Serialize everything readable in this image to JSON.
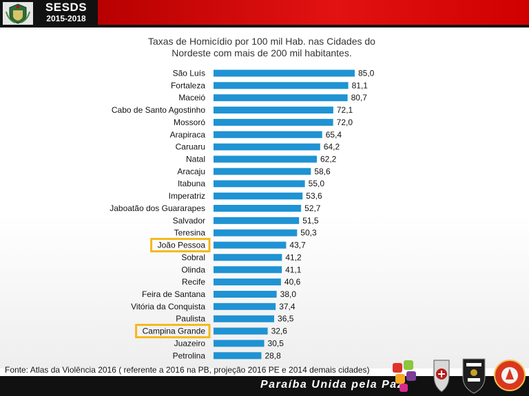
{
  "header": {
    "brand_title": "SESDS",
    "brand_years": "2015-2018",
    "red_color": "#e21212"
  },
  "footer": {
    "source": "Fonte: Atlas da Violência 2016 ( referente a 2016 na PB, projeção 2016 PE e 2014 demais cidades)",
    "slogan": "Paraíba Unida pela Paz"
  },
  "icons": [
    "state-crest-icon",
    "puzzle-logo-icon",
    "policia-militar-badge-icon",
    "policia-civil-badge-icon",
    "bombeiros-badge-icon"
  ],
  "chart_data": {
    "type": "bar",
    "orientation": "horizontal",
    "title_line1": "Taxas de Homicídio por 100 mil Hab. nas Cidades do",
    "title_line2": "Nordeste com mais de 200 mil habitantes.",
    "categories": [
      "São Luís",
      "Fortaleza",
      "Maceió",
      "Cabo de Santo Agostinho",
      "Mossoró",
      "Arapiraca",
      "Caruaru",
      "Natal",
      "Aracaju",
      "Itabuna",
      "Imperatriz",
      "Jaboatão dos Guararapes",
      "Salvador",
      "Teresina",
      "João Pessoa",
      "Sobral",
      "Olinda",
      "Recife",
      "Feira de Santana",
      "Vitória da Conquista",
      "Paulista",
      "Campina Grande",
      "Juazeiro",
      "Petrolina"
    ],
    "values": [
      85.0,
      81.1,
      80.7,
      72.1,
      72.0,
      65.4,
      64.2,
      62.2,
      58.6,
      55.0,
      53.6,
      52.7,
      51.5,
      50.3,
      43.7,
      41.2,
      41.1,
      40.6,
      38.0,
      37.4,
      36.5,
      32.6,
      30.5,
      28.8
    ],
    "value_labels": [
      "85,0",
      "81,1",
      "80,7",
      "72,1",
      "72,0",
      "65,4",
      "64,2",
      "62,2",
      "58,6",
      "55,0",
      "53,6",
      "52,7",
      "51,5",
      "50,3",
      "43,7",
      "41,2",
      "41,1",
      "40,6",
      "38,0",
      "37,4",
      "36,5",
      "32,6",
      "30,5",
      "28,8"
    ],
    "highlighted": [
      "João Pessoa",
      "Campina Grande"
    ],
    "xlim": [
      0,
      85
    ],
    "bar_color": "#1f93d3",
    "highlight_color": "#f5b81c",
    "axes_visible": false,
    "grid": false
  }
}
